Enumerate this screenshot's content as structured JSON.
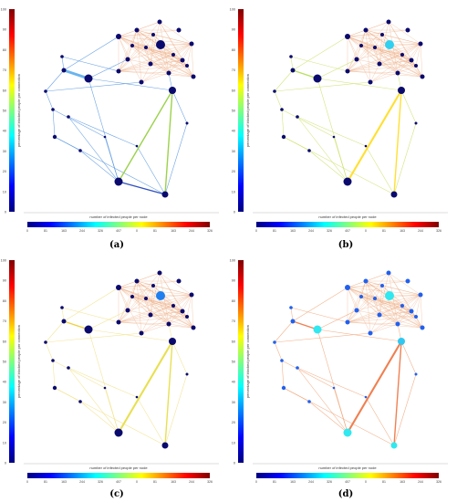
{
  "colors": {
    "jet": [
      "#00007f",
      "#0000ff",
      "#007fff",
      "#00ffff",
      "#7fff7f",
      "#ffff00",
      "#ff7f00",
      "#ff0000",
      "#7f0000"
    ],
    "cluster_edges_a": "#e9a070",
    "cluster_edges_b": "#e9a070",
    "cluster_edges_c": "#e9a070",
    "cluster_edges_d": "#e9a070"
  },
  "chart_data": [
    {
      "type": "network",
      "panel_label": "(a)",
      "ylabel": "percentage of blocked people per connection",
      "xlabel": "number of infected people per node",
      "yticks": [
        0,
        10,
        20,
        30,
        40,
        50,
        60,
        70,
        80,
        90,
        100
      ],
      "xticks": [
        "0",
        "81",
        "163",
        "244",
        "326",
        "407",
        "0",
        "81",
        "163",
        "244",
        "326"
      ],
      "node_color": "#0a0a6e",
      "peripheral_edge_color": "#4a8ee0",
      "highlight_edges": [
        {
          "from": "n_left_mid",
          "to": "n_left_big",
          "color": "#6ab4f0",
          "weight": 4
        },
        {
          "from": "n_bottom_left",
          "to": "n_right_mid",
          "color": "#9bd24a",
          "weight": 2
        },
        {
          "from": "n_bottom_right",
          "to": "n_right_mid",
          "color": "#9bd24a",
          "weight": 2
        },
        {
          "from": "n_bottom_left",
          "to": "n_bottom_right",
          "color": "#3050c0",
          "weight": 2
        }
      ]
    },
    {
      "type": "network",
      "panel_label": "(b)",
      "ylabel": "percentage of blocked people per connection",
      "xlabel": "number of infected people per node",
      "yticks": [
        0,
        10,
        20,
        30,
        40,
        50,
        60,
        70,
        80,
        90,
        100
      ],
      "xticks": [
        "0",
        "81",
        "163",
        "244",
        "326",
        "407",
        "0",
        "81",
        "163",
        "244",
        "326"
      ],
      "node_color": "#0a0a6e",
      "peripheral_edge_color": "#c8e060",
      "highlight_edges": [
        {
          "from": "n_bottom_left",
          "to": "n_right_mid",
          "color": "#ffe030",
          "weight": 3
        },
        {
          "from": "n_bottom_right",
          "to": "n_right_mid",
          "color": "#ffe030",
          "weight": 2
        },
        {
          "from": "n_left_mid",
          "to": "n_left_big",
          "color": "#b8e060",
          "weight": 2
        }
      ],
      "special_nodes": [
        {
          "id": "n_cluster_big",
          "color": "#30d0f0"
        }
      ]
    },
    {
      "type": "network",
      "panel_label": "(c)",
      "ylabel": "percentage of blocked people per connection",
      "xlabel": "number of infected people per node",
      "yticks": [
        0,
        10,
        20,
        30,
        40,
        50,
        60,
        70,
        80,
        90,
        100
      ],
      "xticks": [
        "0",
        "81",
        "163",
        "244",
        "326",
        "407",
        "0",
        "81",
        "163",
        "244",
        "326"
      ],
      "node_color": "#0a0a6e",
      "peripheral_edge_color": "#f0e080",
      "highlight_edges": [
        {
          "from": "n_bottom_left",
          "to": "n_right_mid",
          "color": "#e8e050",
          "weight": 3
        },
        {
          "from": "n_bottom_right",
          "to": "n_right_mid",
          "color": "#e8e050",
          "weight": 2
        },
        {
          "from": "n_left_mid",
          "to": "n_left_big",
          "color": "#f0d040",
          "weight": 2
        }
      ],
      "special_nodes": [
        {
          "id": "n_cluster_big",
          "color": "#2080f0"
        }
      ]
    },
    {
      "type": "network",
      "panel_label": "(d)",
      "ylabel": "percentage of blocked people per connection",
      "xlabel": "number of infected people per node",
      "yticks": [
        0,
        10,
        20,
        30,
        40,
        50,
        60,
        70,
        80,
        90,
        100
      ],
      "xticks": [
        "0",
        "81",
        "163",
        "244",
        "326",
        "407",
        "0",
        "81",
        "163",
        "244",
        "326"
      ],
      "node_color": "#2060f0",
      "peripheral_edge_color": "#f0a070",
      "highlight_edges": [
        {
          "from": "n_bottom_left",
          "to": "n_right_mid",
          "color": "#f08050",
          "weight": 3
        },
        {
          "from": "n_bottom_right",
          "to": "n_right_mid",
          "color": "#f08050",
          "weight": 2
        },
        {
          "from": "n_left_mid",
          "to": "n_left_big",
          "color": "#f08050",
          "weight": 2
        }
      ],
      "special_nodes": [
        {
          "id": "n_cluster_big",
          "color": "#30e8f0"
        },
        {
          "id": "n_left_big",
          "color": "#30e8f0"
        },
        {
          "id": "n_bottom_left",
          "color": "#30e8f0"
        },
        {
          "id": "n_bottom_right",
          "color": "#30e8f0"
        },
        {
          "id": "n_right_mid",
          "color": "#30c8f0"
        }
      ]
    }
  ]
}
